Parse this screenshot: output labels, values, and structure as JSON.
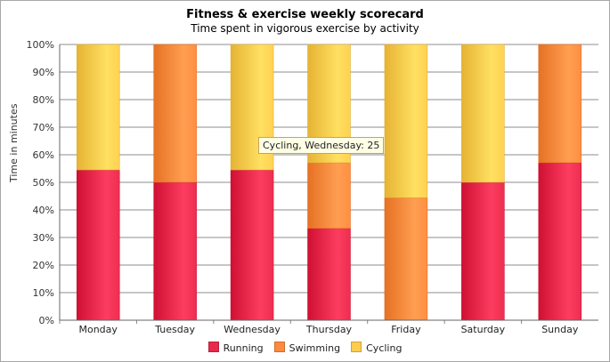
{
  "chart_data": {
    "type": "bar",
    "stacked": "percent",
    "title": "Fitness & exercise weekly scorecard",
    "subtitle": "Time spent in vigorous exercise by activity",
    "xlabel": "",
    "ylabel": "Time in minutes",
    "ylim": [
      0,
      100
    ],
    "yticks": [
      "0%",
      "10%",
      "20%",
      "30%",
      "40%",
      "50%",
      "60%",
      "70%",
      "80%",
      "90%",
      "100%"
    ],
    "grid": true,
    "legend_position": "bottom",
    "categories": [
      "Monday",
      "Tuesday",
      "Wednesday",
      "Thursday",
      "Friday",
      "Saturday",
      "Sunday"
    ],
    "series": [
      {
        "name": "Running",
        "color": "#e8294c",
        "values": [
          54.5,
          50,
          54.5,
          33.3,
          0,
          50,
          57.1
        ]
      },
      {
        "name": "Swimming",
        "color": "#ff8a3d",
        "values": [
          0,
          50,
          0,
          23.8,
          44.4,
          0,
          42.9
        ]
      },
      {
        "name": "Cycling",
        "color": "#ffcc4d",
        "values": [
          45.5,
          0,
          45.5,
          42.9,
          55.6,
          50,
          0
        ]
      }
    ]
  },
  "tooltip": {
    "text": "Cycling, Wednesday: 25"
  }
}
